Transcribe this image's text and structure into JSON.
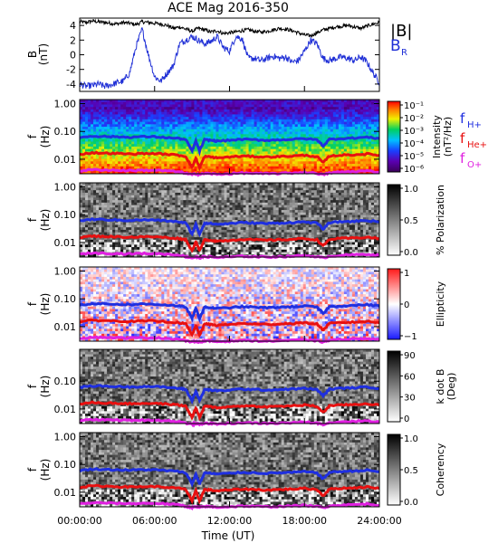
{
  "title": "ACE Mag 2016-350",
  "time_axis": {
    "label": "Time (UT)",
    "ticks": [
      "00:00:00",
      "06:00:00",
      "12:00:00",
      "18:00:00",
      "24:00:00"
    ],
    "range_hours": [
      0,
      24
    ]
  },
  "colors": {
    "B_total": "#000000",
    "B_R": "#1f2fd6",
    "f_H": "#1f2fe0",
    "f_He": "#e81010",
    "f_O": "#e020e0"
  },
  "chart_data": [
    {
      "type": "line",
      "name": "B",
      "ylabel": "B",
      "yunit": "(nT)",
      "ylim": [
        -5,
        5
      ],
      "yticks": [
        -4,
        -2,
        0,
        2,
        4
      ],
      "x_hours": [
        0,
        0.5,
        1,
        1.5,
        2,
        2.5,
        3,
        3.5,
        4,
        4.5,
        5,
        5.5,
        6,
        6.5,
        7,
        7.5,
        8,
        8.5,
        9,
        9.5,
        10,
        10.5,
        11,
        11.5,
        12,
        12.5,
        13,
        13.5,
        14,
        14.5,
        15,
        15.5,
        16,
        16.5,
        17,
        17.5,
        18,
        18.5,
        19,
        19.5,
        20,
        20.5,
        21,
        21.5,
        22,
        22.5,
        23,
        23.5,
        24
      ],
      "series": [
        {
          "name": "|B|",
          "values": [
            4.5,
            4.4,
            4.6,
            4.5,
            4.4,
            4.3,
            4.2,
            4.4,
            4.3,
            4.1,
            4.5,
            4.4,
            4.3,
            4.2,
            4.0,
            3.6,
            3.8,
            3.5,
            3.2,
            3.6,
            3.4,
            3.1,
            3.3,
            2.9,
            3.0,
            3.1,
            3.3,
            3.4,
            3.2,
            3.1,
            3.2,
            3.4,
            3.6,
            3.5,
            3.3,
            3.0,
            2.7,
            2.6,
            3.0,
            3.4,
            3.6,
            3.8,
            3.9,
            4.0,
            3.8,
            3.6,
            3.9,
            4.2,
            4.4
          ]
        },
        {
          "name": "B_R",
          "values": [
            -4.0,
            -4.3,
            -4.2,
            -4.0,
            -4.3,
            -4.1,
            -3.8,
            -3.6,
            -2.5,
            1.0,
            3.5,
            0.0,
            -3.0,
            -3.6,
            -2.5,
            -1.5,
            1.5,
            2.0,
            2.5,
            2.0,
            1.5,
            1.8,
            2.5,
            1.0,
            0.5,
            2.5,
            2.2,
            -0.5,
            -0.5,
            -0.8,
            -0.5,
            -0.2,
            -0.5,
            -0.3,
            -1.0,
            -0.8,
            0.5,
            2.0,
            1.5,
            -0.5,
            -0.8,
            -0.5,
            -0.3,
            -0.5,
            -0.8,
            -0.3,
            -1.0,
            -2.5,
            -3.8
          ]
        }
      ],
      "legend": [
        "|B|",
        "B_R"
      ]
    },
    {
      "type": "heatmap",
      "ylabel": "f",
      "yunit": "(Hz)",
      "yticks": [
        "1.00",
        "0.10",
        "0.01"
      ],
      "colorbar": {
        "label": "Intensity",
        "unit": "(nT²/Hz)",
        "ticks": [
          "10⁻¹",
          "10⁻²",
          "10⁻³",
          "10⁻⁴",
          "10⁻⁵",
          "10⁻⁶"
        ],
        "scheme": "rainbow"
      },
      "legend": [
        {
          "name": "f",
          "sub": "H+"
        },
        {
          "name": "f",
          "sub": "He+"
        },
        {
          "name": "f",
          "sub": "O+"
        }
      ]
    },
    {
      "type": "heatmap",
      "ylabel": "f",
      "yunit": "(Hz)",
      "yticks": [
        "1.00",
        "0.10",
        "0.01"
      ],
      "colorbar": {
        "label": "% Polarization",
        "ticks": [
          "1.0",
          "0.5",
          "0.0"
        ],
        "scheme": "gray"
      }
    },
    {
      "type": "heatmap",
      "ylabel": "f",
      "yunit": "(Hz)",
      "yticks": [
        "1.00",
        "0.10",
        "0.01"
      ],
      "colorbar": {
        "label": "Ellipticity",
        "ticks": [
          "1",
          "0",
          "−1"
        ],
        "scheme": "diverging"
      }
    },
    {
      "type": "heatmap",
      "ylabel": "f",
      "yunit": "(Hz)",
      "yticks": [
        "0.10",
        "0.01"
      ],
      "colorbar": {
        "label": "k dot B",
        "unit": "(Deg)",
        "ticks": [
          "90",
          "60",
          "30",
          "0"
        ],
        "scheme": "gray"
      }
    },
    {
      "type": "heatmap",
      "ylabel": "f",
      "yunit": "(Hz)",
      "yticks": [
        "1.00",
        "0.10",
        "0.01"
      ],
      "colorbar": {
        "label": "Coherency",
        "ticks": [
          "1.0",
          "0.5",
          "0.0"
        ],
        "scheme": "gray"
      }
    }
  ],
  "gyrofrequency_lines": {
    "x_hours": [
      0,
      1,
      2,
      3,
      4,
      5,
      6,
      7,
      8,
      8.5,
      9,
      9.3,
      9.6,
      10,
      10.5,
      11,
      12,
      13,
      14,
      15,
      16,
      17,
      18,
      19,
      19.5,
      20,
      21,
      22,
      23,
      24
    ],
    "f_H_hz": [
      0.06,
      0.068,
      0.066,
      0.064,
      0.062,
      0.065,
      0.064,
      0.06,
      0.055,
      0.05,
      0.02,
      0.045,
      0.02,
      0.05,
      0.048,
      0.045,
      0.048,
      0.052,
      0.05,
      0.048,
      0.05,
      0.052,
      0.055,
      0.05,
      0.03,
      0.052,
      0.056,
      0.058,
      0.062,
      0.055
    ],
    "f_He_hz": [
      0.015,
      0.017,
      0.0165,
      0.016,
      0.0155,
      0.016,
      0.016,
      0.015,
      0.0138,
      0.0125,
      0.005,
      0.011,
      0.005,
      0.0125,
      0.012,
      0.0112,
      0.012,
      0.013,
      0.0125,
      0.012,
      0.0125,
      0.013,
      0.0138,
      0.0125,
      0.0075,
      0.013,
      0.014,
      0.0145,
      0.0155,
      0.0138
    ],
    "f_O_hz": [
      0.0038,
      0.0042,
      0.0041,
      0.004,
      0.0039,
      0.004,
      0.004,
      0.0038,
      0.0035,
      0.0031,
      0.0028,
      0.003,
      0.0028,
      0.0031,
      0.003,
      0.0029,
      0.003,
      0.0032,
      0.0031,
      0.003,
      0.0031,
      0.0032,
      0.0034,
      0.0031,
      0.0028,
      0.0032,
      0.0035,
      0.0036,
      0.0038,
      0.0034
    ]
  }
}
